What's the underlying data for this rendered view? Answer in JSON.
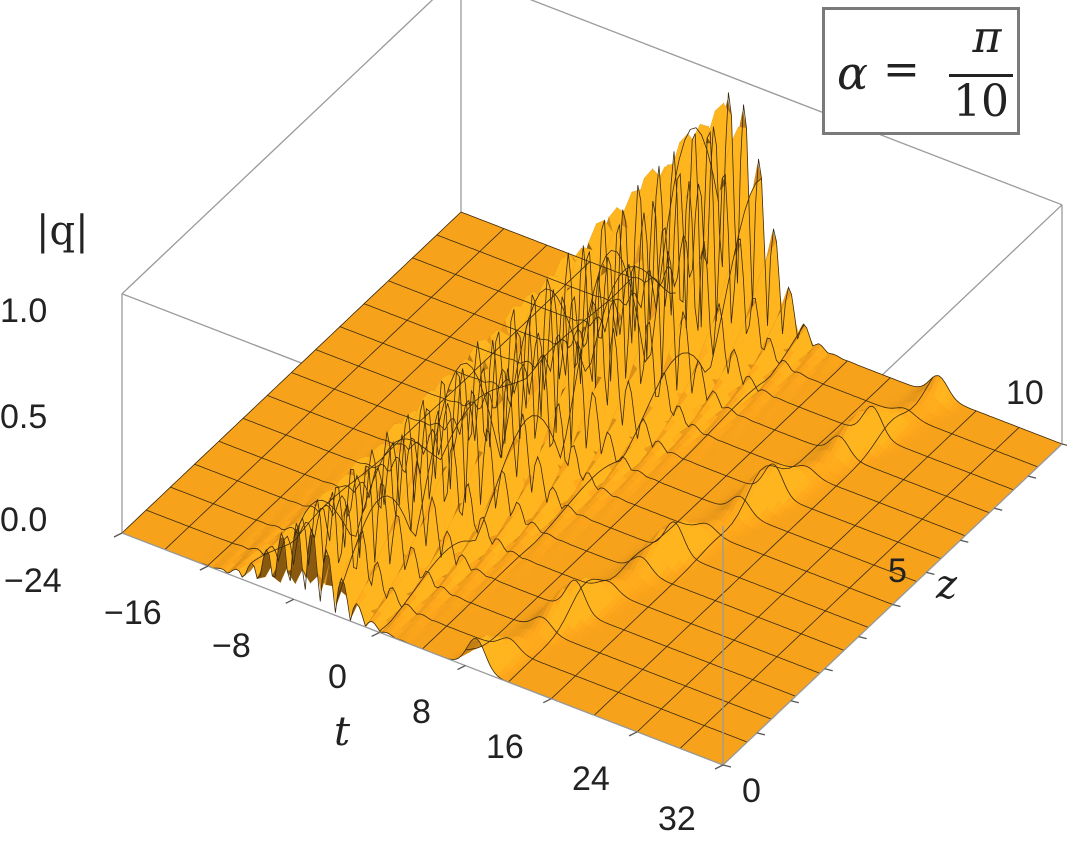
{
  "legend": {
    "alpha_symbol": "α",
    "equals": "=",
    "numerator": "π",
    "denominator": "10"
  },
  "chart_data": {
    "type": "surface3d",
    "zlabel": "|q|",
    "xlabel": "t",
    "ylabel": "z",
    "x_ticks": [
      "−24",
      "−16",
      "−8",
      "0",
      "8",
      "16",
      "24",
      "32"
    ],
    "y_ticks": [
      "0",
      "5",
      "10"
    ],
    "z_ticks": [
      "0.0",
      "0.5",
      "1.0"
    ],
    "xlim": [
      -24,
      32
    ],
    "ylim": [
      0,
      10
    ],
    "zlim": [
      0,
      1.0
    ],
    "surface_color": "#f7a21b",
    "ridges": [
      {
        "description": "oscillating breather ridges",
        "t_start": -7,
        "slope_t_per_z": 0.85,
        "peak": 1.1
      },
      {
        "description": "smooth soliton ridge",
        "t_start": 9,
        "slope_t_per_z": 1.15,
        "peak": 0.15
      }
    ]
  }
}
